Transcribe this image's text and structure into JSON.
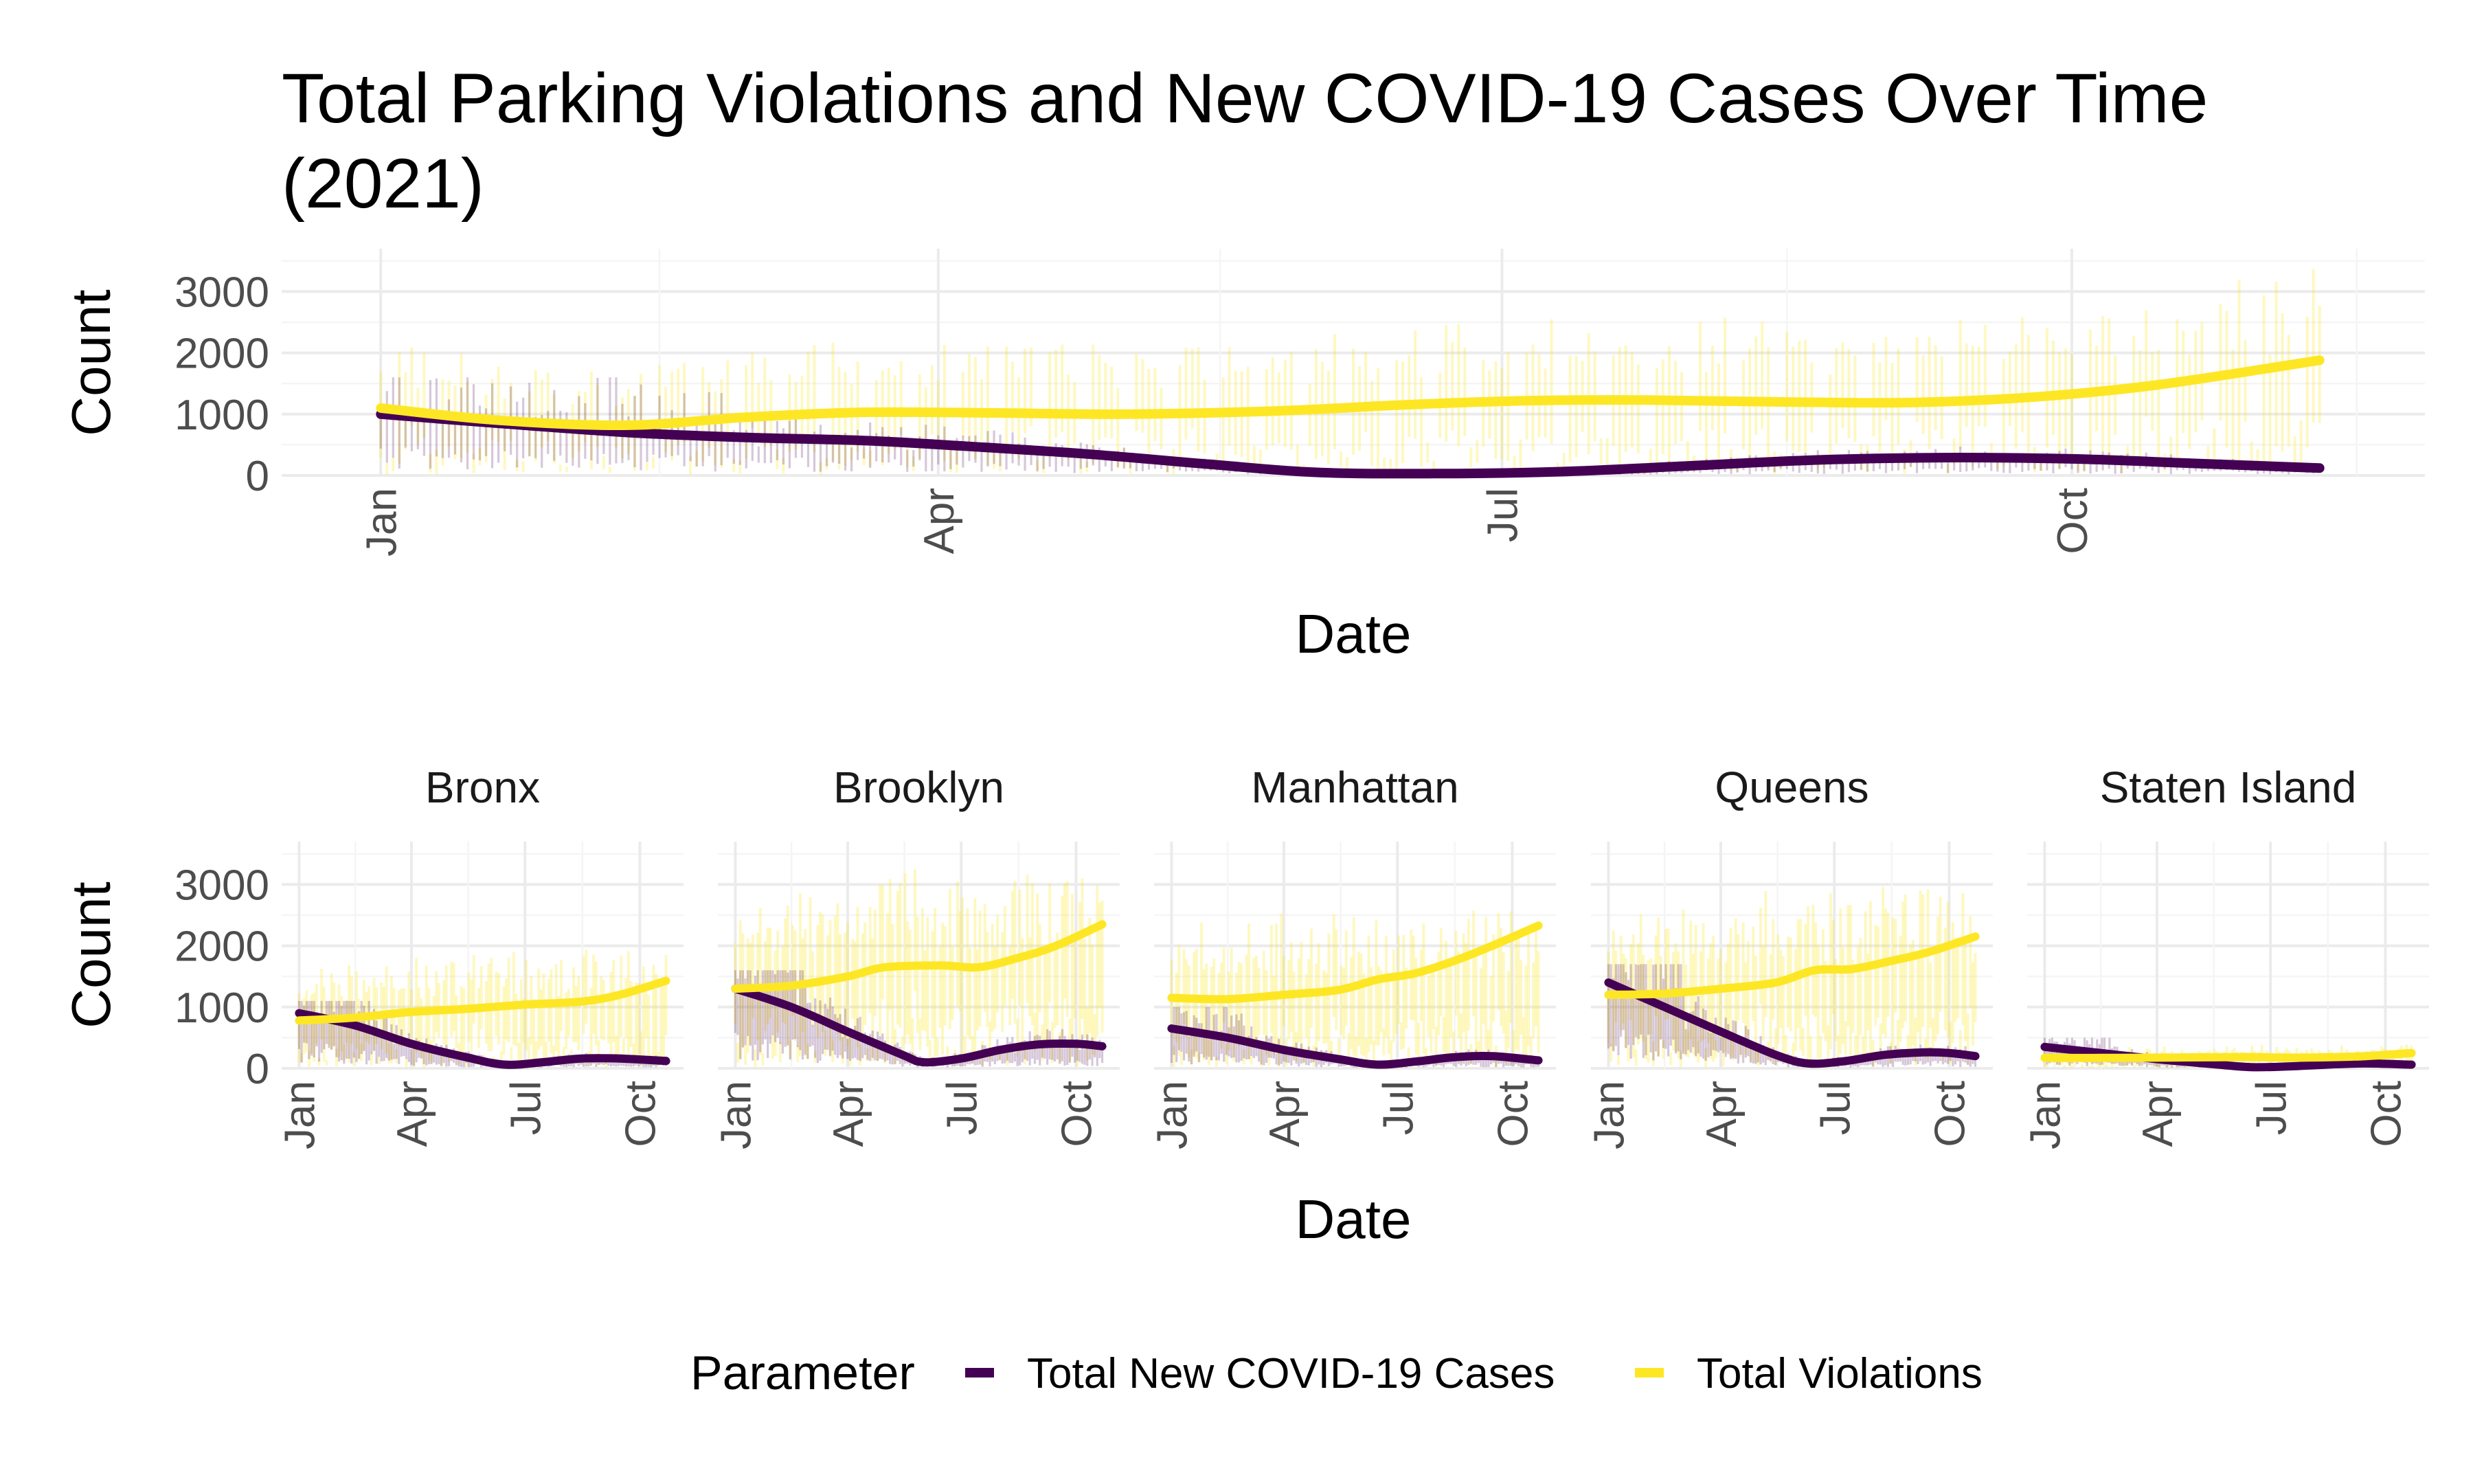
{
  "title": "Total Parking Violations and New COVID-19 Cases Over Time",
  "title_line2": "(2021)",
  "colors": {
    "violations": "#FDE725",
    "covid": "#440154",
    "grid_major": "#ebebeb",
    "grid_minor": "#f5f5f5"
  },
  "legend": {
    "title": "Parameter",
    "items": [
      {
        "label": "Total New COVID-19 Cases",
        "color": "#440154"
      },
      {
        "label": "Total Violations",
        "color": "#FDE725"
      }
    ]
  },
  "chart_data": [
    {
      "type": "line",
      "panel": "overall",
      "xlabel": "Date",
      "ylabel": "Count",
      "xlim": [
        "2020-12-16",
        "2021-11-27"
      ],
      "ylim": [
        0,
        3700
      ],
      "x_ticks": [
        {
          "date": "2021-01-01",
          "label": "Jan"
        },
        {
          "date": "2021-04-01",
          "label": "Apr"
        },
        {
          "date": "2021-07-01",
          "label": "Jul"
        },
        {
          "date": "2021-10-01",
          "label": "Oct"
        }
      ],
      "y_ticks": [
        0,
        1000,
        2000,
        3000
      ],
      "raw_range": {
        "start": "2021-01-01",
        "end": "2021-11-10",
        "violations_typical_max": 2600,
        "covid_typical_max": 1600
      },
      "series": [
        {
          "name": "Total New COVID-19 Cases",
          "x": [
            "2021-01-01",
            "2021-01-20",
            "2021-02-10",
            "2021-03-01",
            "2021-03-20",
            "2021-04-05",
            "2021-04-25",
            "2021-05-15",
            "2021-06-01",
            "2021-06-20",
            "2021-07-10",
            "2021-07-30",
            "2021-08-20",
            "2021-09-10",
            "2021-10-01",
            "2021-10-20",
            "2021-11-10"
          ],
          "values": [
            1000,
            850,
            700,
            620,
            570,
            480,
            350,
            180,
            50,
            30,
            60,
            150,
            250,
            290,
            270,
            200,
            120
          ]
        },
        {
          "name": "Total Violations",
          "x": [
            "2021-01-01",
            "2021-01-20",
            "2021-02-10",
            "2021-03-01",
            "2021-03-20",
            "2021-04-10",
            "2021-05-01",
            "2021-05-25",
            "2021-06-15",
            "2021-07-05",
            "2021-07-25",
            "2021-08-15",
            "2021-09-05",
            "2021-09-25",
            "2021-10-15",
            "2021-11-10"
          ],
          "values": [
            1100,
            900,
            820,
            950,
            1030,
            1020,
            1000,
            1050,
            1150,
            1220,
            1230,
            1200,
            1190,
            1280,
            1480,
            1880
          ]
        }
      ]
    },
    {
      "type": "line",
      "panel": "Bronx",
      "xlabel": "Date",
      "ylabel": "Count",
      "xlim": [
        "2020-12-18",
        "2021-11-05"
      ],
      "ylim": [
        0,
        3700
      ],
      "x_tick_labels": [
        "Jan",
        "Apr",
        "Jul",
        "Oct"
      ],
      "y_ticks": [
        0,
        1000,
        2000,
        3000
      ],
      "raw_range": {
        "start": "2021-01-01",
        "end": "2021-10-22",
        "violations_typical_max": 1500,
        "covid_typical_max": 1100
      },
      "series": [
        {
          "name": "Total New COVID-19 Cases",
          "x": [
            "2021-01-01",
            "2021-02-15",
            "2021-04-01",
            "2021-05-15",
            "2021-06-15",
            "2021-07-15",
            "2021-08-15",
            "2021-09-15",
            "2021-10-22"
          ],
          "values": [
            900,
            700,
            400,
            180,
            60,
            100,
            160,
            160,
            120
          ]
        },
        {
          "name": "Total Violations",
          "x": [
            "2021-01-01",
            "2021-02-15",
            "2021-04-01",
            "2021-05-15",
            "2021-07-01",
            "2021-08-15",
            "2021-09-15",
            "2021-10-22"
          ],
          "values": [
            780,
            830,
            920,
            970,
            1040,
            1090,
            1200,
            1430
          ]
        }
      ]
    },
    {
      "type": "line",
      "panel": "Brooklyn",
      "xlabel": "Date",
      "ylabel": "Count",
      "xlim": [
        "2020-12-18",
        "2021-11-05"
      ],
      "ylim": [
        0,
        3700
      ],
      "x_tick_labels": [
        "Jan",
        "Apr",
        "Jul",
        "Oct"
      ],
      "y_ticks": [
        0,
        1000,
        2000,
        3000
      ],
      "raw_range": {
        "start": "2021-01-01",
        "end": "2021-10-22",
        "violations_typical_max": 2500,
        "covid_typical_max": 1600
      },
      "series": [
        {
          "name": "Total New COVID-19 Cases",
          "x": [
            "2021-01-01",
            "2021-02-15",
            "2021-04-01",
            "2021-05-15",
            "2021-06-01",
            "2021-07-01",
            "2021-08-01",
            "2021-09-01",
            "2021-10-01",
            "2021-10-22"
          ],
          "values": [
            1300,
            1000,
            600,
            220,
            100,
            160,
            300,
            390,
            400,
            360
          ]
        },
        {
          "name": "Total Violations",
          "x": [
            "2021-01-01",
            "2021-02-15",
            "2021-04-01",
            "2021-05-01",
            "2021-06-15",
            "2021-07-15",
            "2021-08-15",
            "2021-09-15",
            "2021-10-22"
          ],
          "values": [
            1300,
            1350,
            1500,
            1650,
            1680,
            1650,
            1800,
            2000,
            2350
          ]
        }
      ]
    },
    {
      "type": "line",
      "panel": "Manhattan",
      "xlabel": "Date",
      "ylabel": "Count",
      "xlim": [
        "2020-12-18",
        "2021-11-05"
      ],
      "ylim": [
        0,
        3700
      ],
      "x_tick_labels": [
        "Jan",
        "Apr",
        "Jul",
        "Oct"
      ],
      "y_ticks": [
        0,
        1000,
        2000,
        3000
      ],
      "raw_range": {
        "start": "2021-01-01",
        "end": "2021-10-22",
        "violations_typical_max": 2000,
        "covid_typical_max": 1000
      },
      "series": [
        {
          "name": "Total New COVID-19 Cases",
          "x": [
            "2021-01-01",
            "2021-02-15",
            "2021-04-01",
            "2021-05-15",
            "2021-06-15",
            "2021-07-15",
            "2021-08-15",
            "2021-09-15",
            "2021-10-22"
          ],
          "values": [
            650,
            500,
            300,
            150,
            60,
            110,
            180,
            200,
            130
          ]
        },
        {
          "name": "Total Violations",
          "x": [
            "2021-01-01",
            "2021-02-15",
            "2021-04-01",
            "2021-05-15",
            "2021-06-15",
            "2021-07-15",
            "2021-08-15",
            "2021-09-15",
            "2021-10-22"
          ],
          "values": [
            1150,
            1130,
            1200,
            1280,
            1450,
            1550,
            1750,
            2000,
            2330
          ]
        }
      ]
    },
    {
      "type": "line",
      "panel": "Queens",
      "xlabel": "Date",
      "ylabel": "Count",
      "xlim": [
        "2020-12-18",
        "2021-11-05"
      ],
      "ylim": [
        0,
        3700
      ],
      "x_tick_labels": [
        "Jan",
        "Apr",
        "Jul",
        "Oct"
      ],
      "y_ticks": [
        0,
        1000,
        2000,
        3000
      ],
      "raw_range": {
        "start": "2021-01-01",
        "end": "2021-10-22",
        "violations_typical_max": 2300,
        "covid_typical_max": 1700
      },
      "series": [
        {
          "name": "Total New COVID-19 Cases",
          "x": [
            "2021-01-01",
            "2021-02-15",
            "2021-04-01",
            "2021-05-15",
            "2021-06-10",
            "2021-07-10",
            "2021-08-10",
            "2021-09-10",
            "2021-10-01",
            "2021-10-22"
          ],
          "values": [
            1400,
            1000,
            600,
            220,
            80,
            120,
            220,
            260,
            250,
            200
          ]
        },
        {
          "name": "Total Violations",
          "x": [
            "2021-01-01",
            "2021-02-15",
            "2021-04-01",
            "2021-05-15",
            "2021-06-15",
            "2021-07-15",
            "2021-08-15",
            "2021-09-15",
            "2021-10-22"
          ],
          "values": [
            1200,
            1220,
            1300,
            1400,
            1600,
            1620,
            1750,
            1900,
            2150
          ]
        }
      ]
    },
    {
      "type": "line",
      "panel": "Staten Island",
      "xlabel": "Date",
      "ylabel": "Count",
      "xlim": [
        "2020-12-18",
        "2021-11-05"
      ],
      "ylim": [
        0,
        3700
      ],
      "x_tick_labels": [
        "Jan",
        "Apr",
        "Jul",
        "Oct"
      ],
      "y_ticks": [
        0,
        1000,
        2000,
        3000
      ],
      "raw_range": {
        "start": "2021-01-01",
        "end": "2021-10-22",
        "violations_typical_max": 300,
        "covid_typical_max": 500
      },
      "series": [
        {
          "name": "Total New COVID-19 Cases",
          "x": [
            "2021-01-01",
            "2021-02-15",
            "2021-04-01",
            "2021-05-15",
            "2021-06-15",
            "2021-07-15",
            "2021-08-15",
            "2021-09-15",
            "2021-10-22"
          ],
          "values": [
            350,
            250,
            150,
            70,
            20,
            30,
            60,
            80,
            60
          ]
        },
        {
          "name": "Total Violations",
          "x": [
            "2021-01-01",
            "2021-02-15",
            "2021-04-01",
            "2021-05-15",
            "2021-06-15",
            "2021-07-15",
            "2021-08-15",
            "2021-09-15",
            "2021-10-22"
          ],
          "values": [
            170,
            170,
            175,
            180,
            185,
            175,
            180,
            200,
            250
          ]
        }
      ]
    }
  ]
}
